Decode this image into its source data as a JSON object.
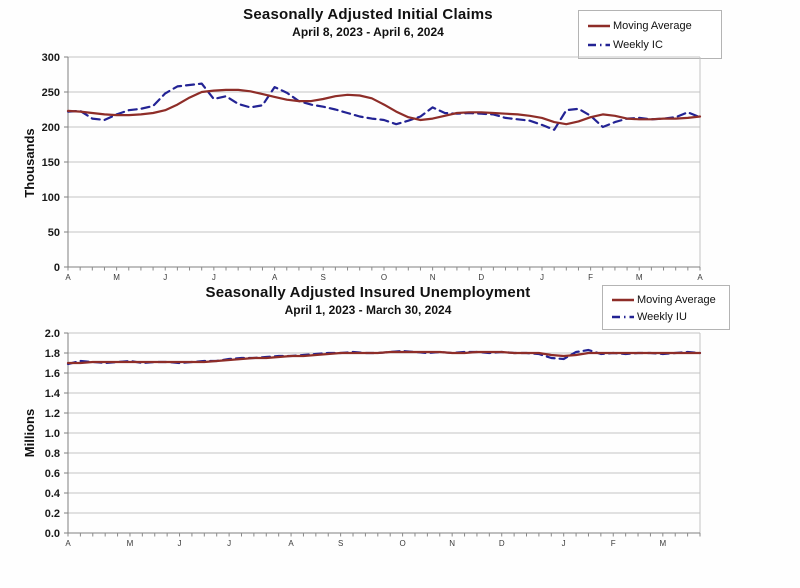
{
  "page_background": "#fefefe",
  "chart_data": [
    {
      "type": "line",
      "title": "Seasonally Adjusted Initial Claims",
      "subtitle": "April 8, 2023 - April 6, 2024",
      "ylabel": "Thousands",
      "xlabel": "",
      "ylim": [
        0,
        300
      ],
      "ytick_step": 50,
      "ytick_decimals": 0,
      "grid": true,
      "legend_position": "top-right",
      "x_unit": "week",
      "month_tick_labels": [
        "A",
        "M",
        "J",
        "J",
        "A",
        "S",
        "O",
        "N",
        "D",
        "J",
        "F",
        "M",
        "A"
      ],
      "month_tick_week_index": [
        0,
        4,
        8,
        12,
        17,
        21,
        26,
        30,
        34,
        39,
        43,
        47,
        52
      ],
      "series": [
        {
          "name": "Moving Average",
          "color": "#8e2d28",
          "line_style": "solid",
          "values": [
            223,
            222,
            220,
            218,
            217,
            217,
            218,
            220,
            224,
            232,
            242,
            250,
            252,
            253,
            253,
            251,
            247,
            243,
            239,
            237,
            237,
            240,
            244,
            246,
            245,
            241,
            232,
            222,
            214,
            210,
            212,
            216,
            220,
            221,
            221,
            220,
            219,
            218,
            216,
            213,
            207,
            204,
            208,
            214,
            218,
            216,
            212,
            211,
            211,
            212,
            212,
            213,
            215
          ]
        },
        {
          "name": "Weekly IC",
          "color": "#232394",
          "line_style": "dashed",
          "values": [
            222,
            223,
            212,
            210,
            218,
            224,
            226,
            230,
            248,
            258,
            260,
            262,
            240,
            244,
            233,
            228,
            231,
            257,
            249,
            237,
            232,
            229,
            225,
            220,
            215,
            212,
            210,
            204,
            209,
            215,
            228,
            220,
            219,
            220,
            219,
            218,
            213,
            211,
            209,
            203,
            196,
            224,
            226,
            216,
            200,
            207,
            212,
            213,
            211,
            212,
            214,
            221,
            214
          ]
        }
      ]
    },
    {
      "type": "line",
      "title": "Seasonally Adjusted Insured Unemployment",
      "subtitle": "April 1, 2023 - March 30, 2024",
      "ylabel": "Millions",
      "xlabel": "",
      "ylim": [
        0,
        2.0
      ],
      "ytick_step": 0.2,
      "ytick_decimals": 1,
      "grid": true,
      "legend_position": "top-right",
      "x_unit": "week",
      "month_tick_labels": [
        "A",
        "M",
        "J",
        "J",
        "A",
        "S",
        "O",
        "N",
        "D",
        "J",
        "F",
        "M"
      ],
      "month_tick_week_index": [
        0,
        5,
        9,
        13,
        18,
        22,
        27,
        31,
        35,
        40,
        44,
        48
      ],
      "series": [
        {
          "name": "Moving Average",
          "color": "#8e2d28",
          "line_style": "solid",
          "values": [
            1.7,
            1.7,
            1.71,
            1.71,
            1.71,
            1.71,
            1.71,
            1.71,
            1.71,
            1.71,
            1.71,
            1.71,
            1.72,
            1.73,
            1.74,
            1.75,
            1.75,
            1.76,
            1.77,
            1.77,
            1.78,
            1.79,
            1.8,
            1.8,
            1.8,
            1.8,
            1.81,
            1.81,
            1.81,
            1.81,
            1.81,
            1.8,
            1.8,
            1.81,
            1.81,
            1.81,
            1.8,
            1.8,
            1.8,
            1.78,
            1.77,
            1.78,
            1.8,
            1.8,
            1.8,
            1.8,
            1.8,
            1.8,
            1.8,
            1.8,
            1.8,
            1.8
          ]
        },
        {
          "name": "Weekly IU",
          "color": "#232394",
          "line_style": "dashed",
          "values": [
            1.69,
            1.72,
            1.71,
            1.7,
            1.71,
            1.72,
            1.7,
            1.71,
            1.71,
            1.7,
            1.71,
            1.72,
            1.72,
            1.74,
            1.75,
            1.75,
            1.76,
            1.77,
            1.77,
            1.78,
            1.79,
            1.8,
            1.8,
            1.81,
            1.8,
            1.8,
            1.81,
            1.82,
            1.81,
            1.8,
            1.81,
            1.8,
            1.81,
            1.81,
            1.8,
            1.81,
            1.8,
            1.8,
            1.79,
            1.75,
            1.74,
            1.81,
            1.83,
            1.79,
            1.8,
            1.79,
            1.8,
            1.8,
            1.79,
            1.8,
            1.81,
            1.8
          ]
        }
      ]
    }
  ]
}
